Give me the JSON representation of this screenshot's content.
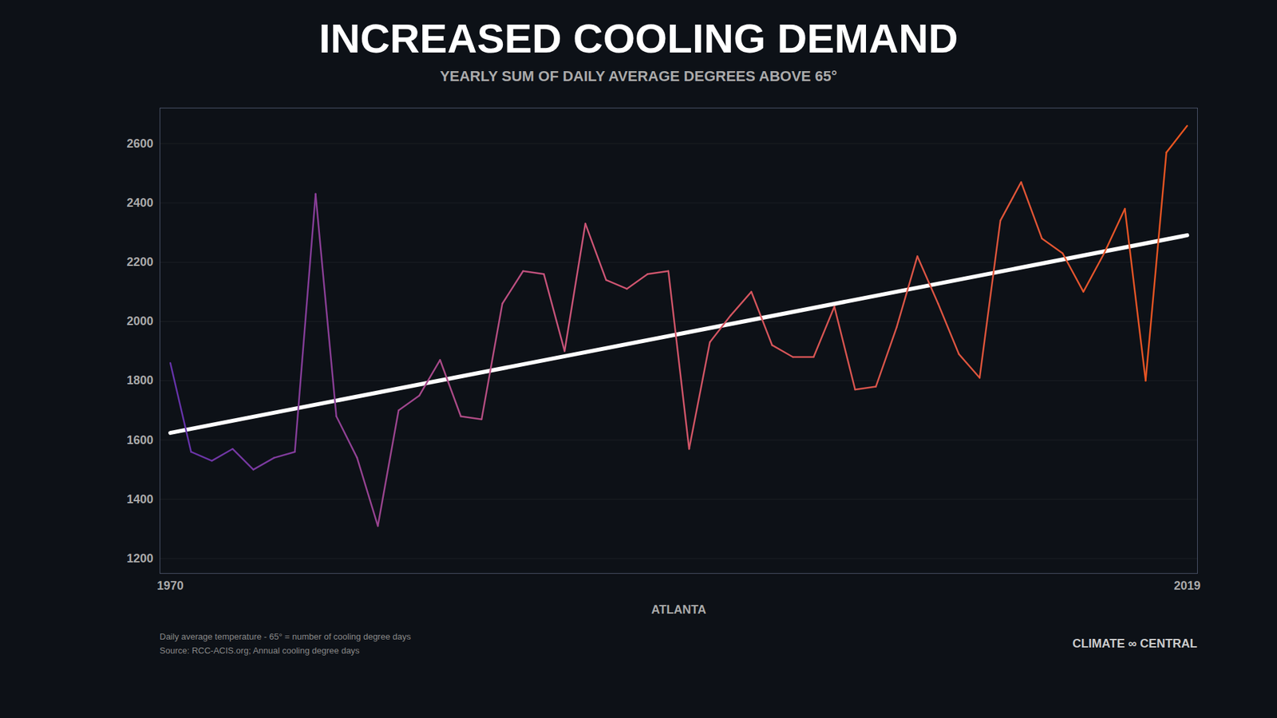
{
  "chart_data": {
    "type": "line",
    "title": "INCREASED COOLING DEMAND",
    "subtitle": "YEARLY SUM OF DAILY AVERAGE DEGREES ABOVE 65°",
    "xlabel": "ATLANTA",
    "x": [
      1970,
      1971,
      1972,
      1973,
      1974,
      1975,
      1976,
      1977,
      1978,
      1979,
      1980,
      1981,
      1982,
      1983,
      1984,
      1985,
      1986,
      1987,
      1988,
      1989,
      1990,
      1991,
      1992,
      1993,
      1994,
      1995,
      1996,
      1997,
      1998,
      1999,
      2000,
      2001,
      2002,
      2003,
      2004,
      2005,
      2006,
      2007,
      2008,
      2009,
      2010,
      2011,
      2012,
      2013,
      2014,
      2015,
      2016,
      2017,
      2018,
      2019
    ],
    "values": [
      1860,
      1560,
      1530,
      1570,
      1500,
      1540,
      1560,
      2430,
      1680,
      1540,
      1310,
      1700,
      1750,
      1870,
      1680,
      1670,
      2060,
      2170,
      2160,
      1900,
      2330,
      2140,
      2110,
      2160,
      2170,
      1570,
      1930,
      2020,
      2100,
      1920,
      1880,
      1880,
      2050,
      1770,
      1780,
      1980,
      2220,
      2060,
      1890,
      1810,
      2340,
      2470,
      2280,
      2230,
      2100,
      2230,
      2380,
      1800,
      2570,
      2660
    ],
    "colors": [
      "#6633aa",
      "#cc5577",
      "#e85520"
    ],
    "trend": {
      "x": [
        1970,
        2019
      ],
      "values": [
        1624.047,
        2290.753
      ],
      "color": "#ffffff"
    },
    "xlim": [
      1969.5,
      2019.5
    ],
    "xticks": [
      1970,
      2019
    ],
    "ylim": [
      1150,
      2720
    ],
    "yticks": [
      1200,
      1400,
      1600,
      1800,
      2000,
      2200,
      2400,
      2600
    ],
    "grid": true,
    "footnote": [
      "Daily average temperature - 65° = number of cooling degree days",
      "Source: RCC-ACIS.org; Annual cooling degree days"
    ],
    "credit": "CLIMATE ∞ CENTRAL",
    "background": "#0d1117"
  }
}
